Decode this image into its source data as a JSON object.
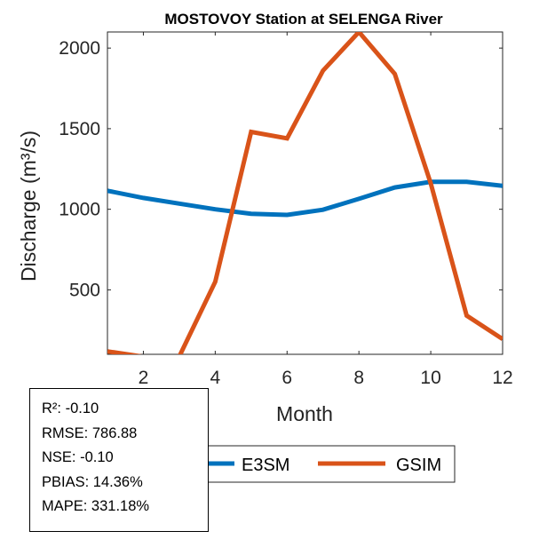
{
  "chart_data": {
    "type": "line",
    "title": "MOSTOVOY  Station at  SELENGA  River",
    "xlabel": "Month",
    "ylabel": "Discharge (m³/s)",
    "xlim": [
      1,
      12
    ],
    "ylim": [
      100,
      2100
    ],
    "xticks": [
      2,
      4,
      6,
      8,
      10,
      12
    ],
    "yticks": [
      500,
      1000,
      1500,
      2000
    ],
    "grid": false,
    "legend_position": "bottom-outside",
    "x": [
      1,
      2,
      3,
      4,
      5,
      6,
      7,
      8,
      9,
      10,
      11,
      12
    ],
    "series": [
      {
        "name": "E3SM",
        "color": "#0072BD",
        "values": [
          1115,
          1070,
          1035,
          1000,
          972,
          965,
          997,
          1065,
          1135,
          1170,
          1170,
          1145
        ]
      },
      {
        "name": "GSIM",
        "color": "#D95319",
        "values": [
          118,
          85,
          87,
          550,
          1480,
          1440,
          1860,
          2100,
          1840,
          1160,
          340,
          195
        ]
      }
    ]
  },
  "stats": {
    "r2": "R²: -0.10",
    "rmse": "RMSE: 786.88",
    "nse": "NSE: -0.10",
    "pbias": "PBIAS: 14.36%",
    "mape": "MAPE: 331.18%"
  }
}
